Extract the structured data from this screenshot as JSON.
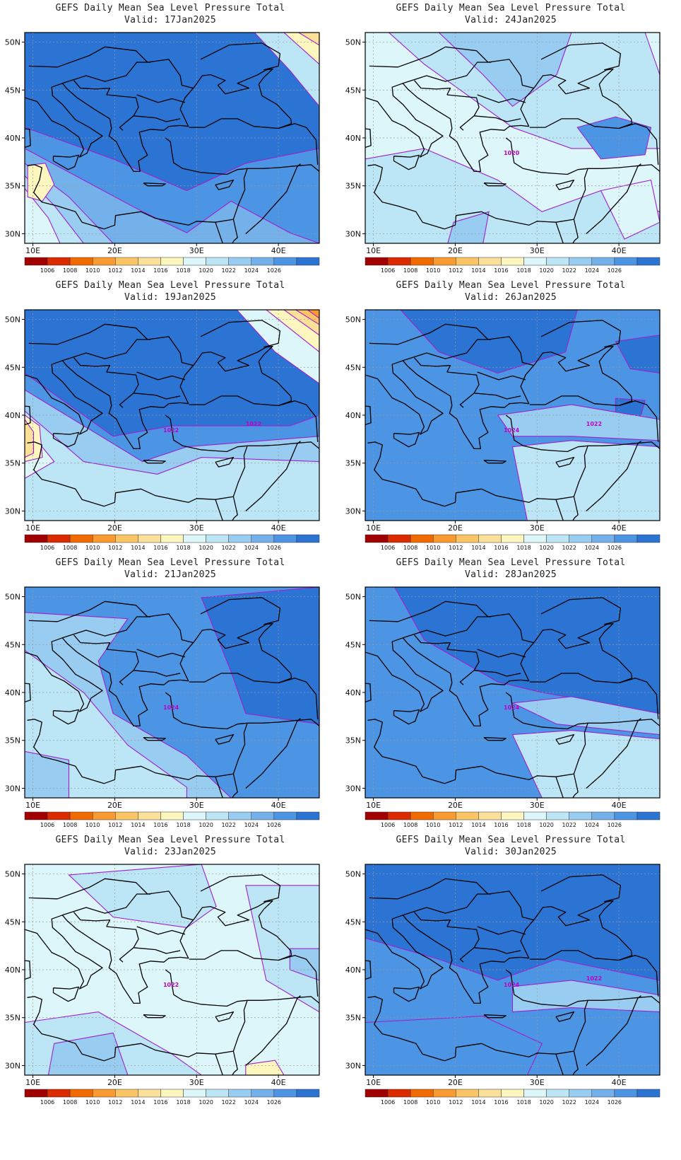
{
  "figure": {
    "title_line1": "GEFS Daily Mean Sea Level Pressure Total",
    "valid_prefix": "Valid:",
    "lon_ticks": [
      "10E",
      "20E",
      "30E",
      "40E"
    ],
    "lat_ticks": [
      "50N",
      "45N",
      "40N",
      "35N",
      "30N"
    ],
    "colorbar_levels": [
      "1006",
      "1008",
      "1010",
      "1012",
      "1014",
      "1016",
      "1018",
      "1020",
      "1022",
      "1024",
      "1026"
    ],
    "colorbar_colors": [
      "#a00000",
      "#dc2a00",
      "#f06a00",
      "#f89a30",
      "#fbc465",
      "#fbe09a",
      "#fdf6bf",
      "#dcf6fa",
      "#bce6f6",
      "#98cdf1",
      "#74b1ea",
      "#4c94e4",
      "#2c74d4"
    ],
    "contour_color": "#a020d0"
  },
  "panels": [
    {
      "date": "17Jan2025",
      "labels": []
    },
    {
      "date": "24Jan2025",
      "labels": [
        "1020"
      ]
    },
    {
      "date": "19Jan2025",
      "labels": [
        "1022",
        "1022"
      ]
    },
    {
      "date": "26Jan2025",
      "labels": [
        "1024",
        "1022"
      ]
    },
    {
      "date": "21Jan2025",
      "labels": [
        "1024"
      ]
    },
    {
      "date": "28Jan2025",
      "labels": [
        "1024"
      ]
    },
    {
      "date": "23Jan2025",
      "labels": [
        "1022"
      ]
    },
    {
      "date": "30Jan2025",
      "labels": [
        "1024",
        "1022"
      ]
    }
  ]
}
